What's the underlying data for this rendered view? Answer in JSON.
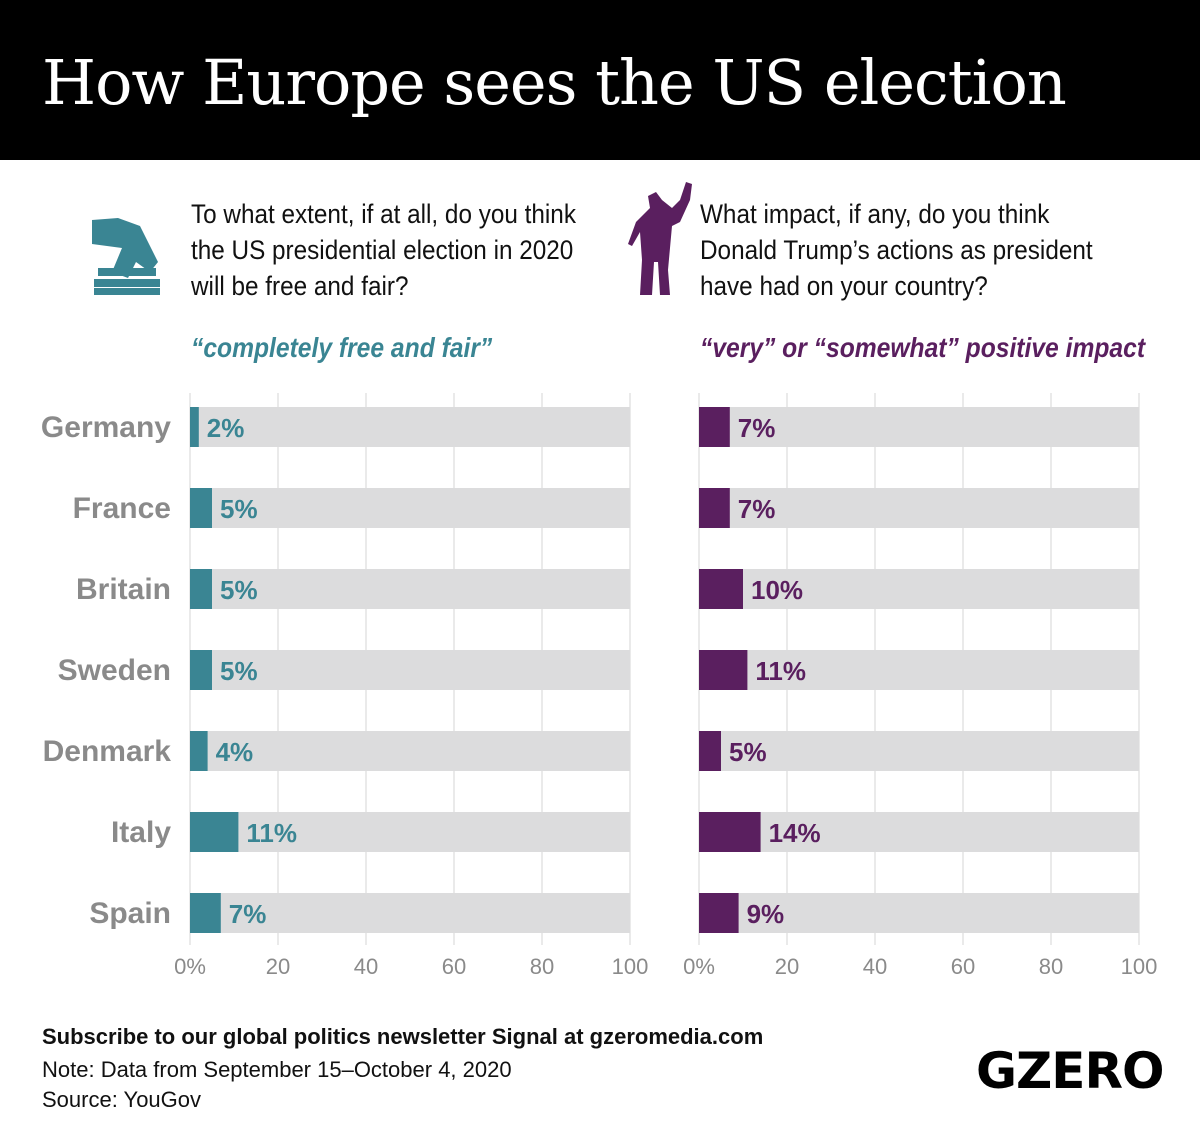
{
  "title": "How Europe sees the US election",
  "colors": {
    "left": "#3a8593",
    "right": "#5a1f5f",
    "track": "#dcdcdd",
    "grid": "#d4d4d4"
  },
  "chart_data": [
    {
      "type": "bar",
      "orientation": "horizontal",
      "question": "To what extent, if at all, do you think the US presidential election in 2020 will be free and fair?",
      "series_label": "“completely free and fair”",
      "icon": "ballot-box-icon",
      "categories": [
        "Germany",
        "France",
        "Britain",
        "Sweden",
        "Denmark",
        "Italy",
        "Spain"
      ],
      "values": [
        2,
        5,
        5,
        5,
        4,
        11,
        7
      ],
      "xlim": [
        0,
        100
      ],
      "ticks": [
        "0%",
        "20",
        "40",
        "60",
        "80",
        "100"
      ],
      "grid": true
    },
    {
      "type": "bar",
      "orientation": "horizontal",
      "question": "What impact, if any, do you think Donald Trump’s actions as president have had on your country?",
      "series_label": "“very” or “somewhat” positive impact",
      "icon": "trump-figure-icon",
      "categories": [
        "Germany",
        "France",
        "Britain",
        "Sweden",
        "Denmark",
        "Italy",
        "Spain"
      ],
      "values": [
        7,
        7,
        10,
        11,
        5,
        14,
        9
      ],
      "xlim": [
        0,
        100
      ],
      "ticks": [
        "0%",
        "20",
        "40",
        "60",
        "80",
        "100"
      ],
      "grid": true
    }
  ],
  "footer": {
    "subscribe": "Subscribe to our global politics newsletter Signal at gzeromedia.com",
    "note": "Note: Data from September 15–October 4, 2020",
    "source": "Source: YouGov",
    "logo": "GZERO"
  }
}
